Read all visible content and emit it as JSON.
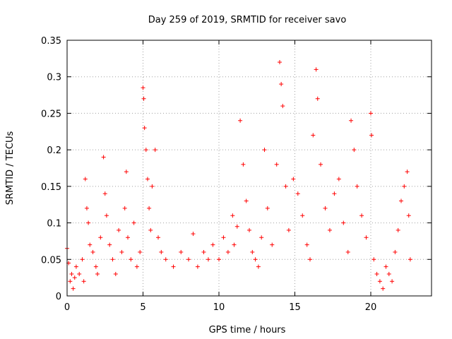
{
  "chart_data": {
    "type": "scatter",
    "title": "Day 259 of 2019, SRMTID for receiver savo",
    "xlabel": "GPS time / hours",
    "ylabel": "SRMTID / TECUs",
    "xlim": [
      0,
      24
    ],
    "ylim": [
      0,
      0.35
    ],
    "xticks": [
      0,
      5,
      10,
      15,
      20
    ],
    "xtick_labels": [
      "0",
      "5",
      "10",
      "15",
      "20"
    ],
    "yticks": [
      0,
      0.05,
      0.1,
      0.15,
      0.2,
      0.25,
      0.3,
      0.35
    ],
    "ytick_labels": [
      "0",
      "0.05",
      "0.1",
      "0.15",
      "0.2",
      "0.25",
      "0.3",
      "0.35"
    ],
    "grid": true,
    "marker": "+",
    "series_color": "#ff0000",
    "data_range_hours": [
      0,
      22.6
    ],
    "series": [
      {
        "name": "SRMTID",
        "points": [
          [
            0.0,
            0.065
          ],
          [
            0.1,
            0.045
          ],
          [
            0.2,
            0.02
          ],
          [
            0.3,
            0.03
          ],
          [
            0.4,
            0.01
          ],
          [
            0.5,
            0.025
          ],
          [
            0.6,
            0.04
          ],
          [
            0.8,
            0.03
          ],
          [
            1.0,
            0.05
          ],
          [
            1.1,
            0.02
          ],
          [
            1.2,
            0.16
          ],
          [
            1.3,
            0.12
          ],
          [
            1.4,
            0.1
          ],
          [
            1.5,
            0.07
          ],
          [
            1.7,
            0.06
          ],
          [
            1.9,
            0.04
          ],
          [
            2.0,
            0.03
          ],
          [
            2.2,
            0.08
          ],
          [
            2.4,
            0.19
          ],
          [
            2.5,
            0.14
          ],
          [
            2.6,
            0.11
          ],
          [
            2.8,
            0.07
          ],
          [
            3.0,
            0.05
          ],
          [
            3.2,
            0.03
          ],
          [
            3.4,
            0.09
          ],
          [
            3.6,
            0.06
          ],
          [
            3.8,
            0.12
          ],
          [
            3.9,
            0.17
          ],
          [
            4.0,
            0.08
          ],
          [
            4.2,
            0.05
          ],
          [
            4.4,
            0.1
          ],
          [
            4.6,
            0.04
          ],
          [
            4.8,
            0.06
          ],
          [
            5.0,
            0.285
          ],
          [
            5.05,
            0.27
          ],
          [
            5.1,
            0.23
          ],
          [
            5.2,
            0.2
          ],
          [
            5.3,
            0.16
          ],
          [
            5.4,
            0.12
          ],
          [
            5.5,
            0.09
          ],
          [
            5.6,
            0.15
          ],
          [
            5.8,
            0.2
          ],
          [
            6.0,
            0.08
          ],
          [
            6.2,
            0.06
          ],
          [
            6.5,
            0.05
          ],
          [
            7.0,
            0.04
          ],
          [
            7.5,
            0.06
          ],
          [
            8.0,
            0.05
          ],
          [
            8.3,
            0.085
          ],
          [
            8.6,
            0.04
          ],
          [
            9.0,
            0.06
          ],
          [
            9.3,
            0.05
          ],
          [
            9.6,
            0.07
          ],
          [
            10.0,
            0.05
          ],
          [
            10.3,
            0.08
          ],
          [
            10.6,
            0.06
          ],
          [
            10.9,
            0.11
          ],
          [
            11.0,
            0.07
          ],
          [
            11.2,
            0.095
          ],
          [
            11.4,
            0.24
          ],
          [
            11.6,
            0.18
          ],
          [
            11.8,
            0.13
          ],
          [
            12.0,
            0.09
          ],
          [
            12.2,
            0.06
          ],
          [
            12.4,
            0.05
          ],
          [
            12.6,
            0.04
          ],
          [
            12.8,
            0.08
          ],
          [
            13.0,
            0.2
          ],
          [
            13.2,
            0.12
          ],
          [
            13.5,
            0.07
          ],
          [
            13.8,
            0.18
          ],
          [
            14.0,
            0.32
          ],
          [
            14.1,
            0.29
          ],
          [
            14.2,
            0.26
          ],
          [
            14.4,
            0.15
          ],
          [
            14.6,
            0.09
          ],
          [
            14.9,
            0.16
          ],
          [
            15.2,
            0.14
          ],
          [
            15.5,
            0.11
          ],
          [
            15.8,
            0.07
          ],
          [
            16.0,
            0.05
          ],
          [
            16.2,
            0.22
          ],
          [
            16.4,
            0.31
          ],
          [
            16.5,
            0.27
          ],
          [
            16.7,
            0.18
          ],
          [
            17.0,
            0.12
          ],
          [
            17.3,
            0.09
          ],
          [
            17.6,
            0.14
          ],
          [
            17.9,
            0.16
          ],
          [
            18.2,
            0.1
          ],
          [
            18.5,
            0.06
          ],
          [
            18.7,
            0.24
          ],
          [
            18.9,
            0.2
          ],
          [
            19.1,
            0.15
          ],
          [
            19.4,
            0.11
          ],
          [
            19.7,
            0.08
          ],
          [
            20.0,
            0.25
          ],
          [
            20.05,
            0.22
          ],
          [
            20.2,
            0.05
          ],
          [
            20.4,
            0.03
          ],
          [
            20.6,
            0.02
          ],
          [
            20.8,
            0.01
          ],
          [
            21.0,
            0.04
          ],
          [
            21.2,
            0.03
          ],
          [
            21.4,
            0.02
          ],
          [
            21.6,
            0.06
          ],
          [
            21.8,
            0.09
          ],
          [
            22.0,
            0.13
          ],
          [
            22.2,
            0.15
          ],
          [
            22.4,
            0.17
          ],
          [
            22.5,
            0.11
          ],
          [
            22.6,
            0.05
          ]
        ]
      }
    ]
  }
}
